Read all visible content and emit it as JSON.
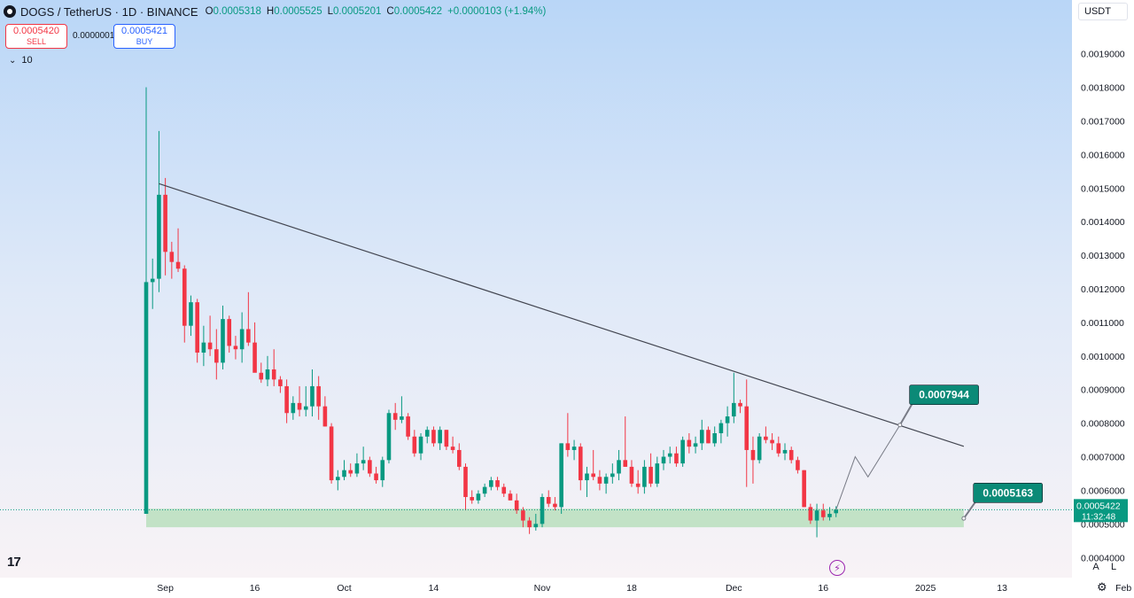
{
  "header": {
    "symbol": "DOGS / TetherUS · 1D · BINANCE",
    "open_label": "O",
    "open": "0.0005318",
    "high_label": "H",
    "high": "0.0005525",
    "low_label": "L",
    "low": "0.0005201",
    "close_label": "C",
    "close": "0.0005422",
    "change": "+0.0000103 (+1.94%)"
  },
  "trade": {
    "sell_price": "0.0005420",
    "sell_label": "SELL",
    "spread": "0.0000001",
    "buy_price": "0.0005421",
    "buy_label": "BUY"
  },
  "indicator": {
    "volume_value": "10"
  },
  "currency": {
    "selected": "USDT"
  },
  "colors": {
    "up": "#089981",
    "down": "#f23645",
    "zone": "#b9dfbd",
    "label_bg": "#0b8a77",
    "trendline": "#434651",
    "projection": "#787b86",
    "bolt": "#9c27b0"
  },
  "icons": {
    "logo": "tradingview-logo",
    "bolt": "lightning-bolt-icon",
    "gear": "gear-icon",
    "chevron": "chevron-down-icon"
  },
  "axis_buttons": {
    "auto": "A",
    "log": "L"
  },
  "chart_data": {
    "type": "candlestick",
    "ylim": [
      0.00034,
      0.00206
    ],
    "y_ticks": [
      "0.0004000",
      "0.0005000",
      "0.0006000",
      "0.0007000",
      "0.0008000",
      "0.0009000",
      "0.0010000",
      "0.0011000",
      "0.0012000",
      "0.0013000",
      "0.0014000",
      "0.0015000",
      "0.0016000",
      "0.0017000",
      "0.0018000",
      "0.0019000"
    ],
    "x_ticks": [
      {
        "day": 3,
        "label": "Sep"
      },
      {
        "day": 17,
        "label": "16"
      },
      {
        "day": 31,
        "label": "Oct"
      },
      {
        "day": 45,
        "label": "14"
      },
      {
        "day": 62,
        "label": "Nov"
      },
      {
        "day": 76,
        "label": "18"
      },
      {
        "day": 92,
        "label": "Dec"
      },
      {
        "day": 106,
        "label": "16"
      },
      {
        "day": 122,
        "label": "2025"
      },
      {
        "day": 134,
        "label": "13"
      },
      {
        "day": 153,
        "label": "Feb"
      }
    ],
    "candles": [
      [
        0.00053,
        0.0018,
        0.00053,
        0.00122
      ],
      [
        0.00122,
        0.00129,
        0.00114,
        0.00123
      ],
      [
        0.00123,
        0.00167,
        0.00119,
        0.00148
      ],
      [
        0.00148,
        0.00153,
        0.00124,
        0.00131
      ],
      [
        0.00131,
        0.00134,
        0.00123,
        0.00128
      ],
      [
        0.00128,
        0.00138,
        0.00125,
        0.00126
      ],
      [
        0.00126,
        0.00127,
        0.00104,
        0.00109
      ],
      [
        0.00109,
        0.00118,
        0.00106,
        0.00116
      ],
      [
        0.00116,
        0.00117,
        0.00098,
        0.00101
      ],
      [
        0.00101,
        0.00109,
        0.00097,
        0.00104
      ],
      [
        0.00104,
        0.00112,
        0.001,
        0.00102
      ],
      [
        0.00102,
        0.00108,
        0.00093,
        0.00098
      ],
      [
        0.00098,
        0.00115,
        0.00096,
        0.00111
      ],
      [
        0.00111,
        0.00112,
        0.00101,
        0.00103
      ],
      [
        0.00103,
        0.00106,
        0.00099,
        0.00102
      ],
      [
        0.00102,
        0.00113,
        0.00098,
        0.00108
      ],
      [
        0.00108,
        0.00119,
        0.00103,
        0.00104
      ],
      [
        0.00104,
        0.0011,
        0.00096,
        0.00095
      ],
      [
        0.00095,
        0.00098,
        0.00092,
        0.00093
      ],
      [
        0.00093,
        0.001,
        0.00091,
        0.00096
      ],
      [
        0.00096,
        0.00102,
        0.00091,
        0.00093
      ],
      [
        0.00093,
        0.00094,
        0.00089,
        0.00091
      ],
      [
        0.00091,
        0.00093,
        0.0008,
        0.00083
      ],
      [
        0.00083,
        0.00088,
        0.00081,
        0.00086
      ],
      [
        0.00086,
        0.00091,
        0.00082,
        0.00084
      ],
      [
        0.00084,
        0.00091,
        0.00082,
        0.00085
      ],
      [
        0.00085,
        0.00096,
        0.00082,
        0.00091
      ],
      [
        0.00091,
        0.00094,
        0.00081,
        0.00085
      ],
      [
        0.00085,
        0.00088,
        0.00079,
        0.00079
      ],
      [
        0.00079,
        0.0008,
        0.00062,
        0.00063
      ],
      [
        0.00063,
        0.00066,
        0.0006,
        0.00064
      ],
      [
        0.00064,
        0.00069,
        0.00063,
        0.00066
      ],
      [
        0.00066,
        0.00068,
        0.00064,
        0.00065
      ],
      [
        0.00065,
        0.00071,
        0.00064,
        0.00068
      ],
      [
        0.00068,
        0.00073,
        0.00066,
        0.00069
      ],
      [
        0.00069,
        0.0007,
        0.00064,
        0.00065
      ],
      [
        0.00065,
        0.00067,
        0.00062,
        0.00063
      ],
      [
        0.00063,
        0.0007,
        0.00061,
        0.00069
      ],
      [
        0.00069,
        0.00084,
        0.00068,
        0.00083
      ],
      [
        0.00083,
        0.00086,
        0.00078,
        0.00081
      ],
      [
        0.00081,
        0.00088,
        0.0008,
        0.00082
      ],
      [
        0.00082,
        0.00083,
        0.00075,
        0.00076
      ],
      [
        0.00076,
        0.00078,
        0.0007,
        0.00071
      ],
      [
        0.00071,
        0.00077,
        0.00069,
        0.00076
      ],
      [
        0.00076,
        0.00079,
        0.00074,
        0.00078
      ],
      [
        0.00078,
        0.00079,
        0.00073,
        0.00074
      ],
      [
        0.00074,
        0.00079,
        0.00072,
        0.00078
      ],
      [
        0.00078,
        0.00078,
        0.00072,
        0.00073
      ],
      [
        0.00073,
        0.00076,
        0.00071,
        0.00072
      ],
      [
        0.00072,
        0.00074,
        0.00066,
        0.00067
      ],
      [
        0.00067,
        0.00068,
        0.00054,
        0.00058
      ],
      [
        0.00058,
        0.0006,
        0.00056,
        0.00057
      ],
      [
        0.00057,
        0.0006,
        0.00056,
        0.00059
      ],
      [
        0.00059,
        0.00062,
        0.00058,
        0.00061
      ],
      [
        0.00061,
        0.00064,
        0.0006,
        0.00063
      ],
      [
        0.00063,
        0.00064,
        0.0006,
        0.00061
      ],
      [
        0.00061,
        0.00062,
        0.00058,
        0.00059
      ],
      [
        0.00059,
        0.0006,
        0.00057,
        0.00057
      ],
      [
        0.00057,
        0.00059,
        0.00053,
        0.00054
      ],
      [
        0.00054,
        0.00055,
        0.00049,
        0.00051
      ],
      [
        0.00051,
        0.00052,
        0.00047,
        0.00049
      ],
      [
        0.00049,
        0.00053,
        0.00048,
        0.0005
      ],
      [
        0.0005,
        0.00059,
        0.00049,
        0.00058
      ],
      [
        0.00058,
        0.0006,
        0.00055,
        0.00056
      ],
      [
        0.00056,
        0.00058,
        0.00054,
        0.00055
      ],
      [
        0.00055,
        0.00074,
        0.00053,
        0.00074
      ],
      [
        0.00074,
        0.00083,
        0.0007,
        0.00072
      ],
      [
        0.00072,
        0.00075,
        0.00069,
        0.00073
      ],
      [
        0.00073,
        0.00074,
        0.0006,
        0.00063
      ],
      [
        0.00063,
        0.00067,
        0.00058,
        0.00065
      ],
      [
        0.00065,
        0.00072,
        0.00063,
        0.00064
      ],
      [
        0.00064,
        0.00066,
        0.0006,
        0.00062
      ],
      [
        0.00062,
        0.00065,
        0.00059,
        0.00064
      ],
      [
        0.00064,
        0.00068,
        0.00062,
        0.00065
      ],
      [
        0.00065,
        0.00072,
        0.00063,
        0.00069
      ],
      [
        0.00069,
        0.00082,
        0.00067,
        0.00067
      ],
      [
        0.00067,
        0.00069,
        0.00061,
        0.00062
      ],
      [
        0.00062,
        0.00066,
        0.00059,
        0.00061
      ],
      [
        0.00061,
        0.00069,
        0.00059,
        0.00067
      ],
      [
        0.00067,
        0.00071,
        0.00061,
        0.00062
      ],
      [
        0.00062,
        0.0007,
        0.00061,
        0.00068
      ],
      [
        0.00068,
        0.00072,
        0.00066,
        0.0007
      ],
      [
        0.0007,
        0.00073,
        0.00068,
        0.00071
      ],
      [
        0.00071,
        0.00073,
        0.00067,
        0.00068
      ],
      [
        0.00068,
        0.00076,
        0.00067,
        0.00075
      ],
      [
        0.00075,
        0.00077,
        0.00071,
        0.00073
      ],
      [
        0.00073,
        0.00076,
        0.00071,
        0.00074
      ],
      [
        0.00074,
        0.00081,
        0.00072,
        0.00078
      ],
      [
        0.00078,
        0.00079,
        0.00074,
        0.00074
      ],
      [
        0.00074,
        0.00079,
        0.00073,
        0.00077
      ],
      [
        0.00077,
        0.00081,
        0.00074,
        0.0008
      ],
      [
        0.0008,
        0.00085,
        0.00076,
        0.00082
      ],
      [
        0.00082,
        0.00095,
        0.0008,
        0.00086
      ],
      [
        0.00086,
        0.00087,
        0.00083,
        0.00085
      ],
      [
        0.00085,
        0.00093,
        0.00061,
        0.00072
      ],
      [
        0.00072,
        0.00076,
        0.00062,
        0.00069
      ],
      [
        0.00069,
        0.00077,
        0.00068,
        0.00076
      ],
      [
        0.00076,
        0.00079,
        0.00074,
        0.00075
      ],
      [
        0.00075,
        0.00077,
        0.00072,
        0.00074
      ],
      [
        0.00074,
        0.00076,
        0.0007,
        0.00071
      ],
      [
        0.00071,
        0.00074,
        0.00069,
        0.00072
      ],
      [
        0.00072,
        0.00073,
        0.00068,
        0.00069
      ],
      [
        0.00069,
        0.0007,
        0.00065,
        0.00066
      ],
      [
        0.00066,
        0.00066,
        0.00055,
        0.00055
      ],
      [
        0.00055,
        0.00056,
        0.0005,
        0.00051
      ],
      [
        0.00051,
        0.00056,
        0.00046,
        0.00054
      ],
      [
        0.00054,
        0.00056,
        0.00051,
        0.00052
      ],
      [
        0.00052,
        0.00055,
        0.00051,
        0.00053
      ],
      [
        0.0005318,
        0.0005525,
        0.0005201,
        0.0005422
      ]
    ],
    "support_zone": {
      "from_day": 0,
      "to_day": 128,
      "low": 0.00049,
      "high": 0.000545
    },
    "trendline": {
      "from": {
        "day": 2,
        "price": 0.001513
      },
      "to": {
        "day": 128,
        "price": 0.000731
      }
    },
    "projection": [
      {
        "day": 108,
        "price": 0.000542
      },
      {
        "day": 111,
        "price": 0.0007
      },
      {
        "day": 113,
        "price": 0.00064
      },
      {
        "day": 118,
        "price": 0.000794
      }
    ],
    "labels": [
      {
        "text": "0.0007944",
        "day": 118,
        "price": 0.0007944,
        "tag_day": 119.5,
        "tag_price": 0.000887
      },
      {
        "text": "0.0005163",
        "day": 128,
        "price": 0.0005163,
        "tag_day": 129.5,
        "tag_price": 0.000595
      }
    ],
    "last_price": {
      "value": "0.0005422",
      "countdown": "11:32:48",
      "price": 0.0005422
    }
  }
}
